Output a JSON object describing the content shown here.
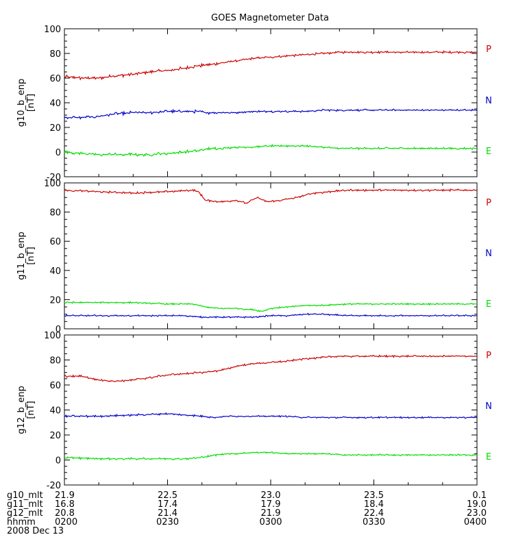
{
  "chart_data": {
    "type": "line",
    "title": "GOES Magnetometer Data",
    "x": [
      "0200",
      "0230",
      "0300",
      "0330",
      "0400"
    ],
    "panels": [
      {
        "ylabel": "g10_b_enp",
        "yunit": "[nT]",
        "ylim": [
          -20,
          100
        ],
        "yticks": [
          -20,
          0,
          20,
          40,
          60,
          80,
          100
        ],
        "series": [
          {
            "name": "P",
            "color": "#cc0000",
            "points": [
              [
                0,
                61
              ],
              [
                10,
                60
              ],
              [
                20,
                60
              ],
              [
                30,
                62
              ],
              [
                40,
                63
              ],
              [
                50,
                65
              ],
              [
                60,
                66
              ],
              [
                70,
                68
              ],
              [
                78,
                70
              ],
              [
                85,
                71
              ],
              [
                90,
                72
              ],
              [
                100,
                74
              ],
              [
                110,
                76
              ],
              [
                120,
                77
              ],
              [
                130,
                78
              ],
              [
                140,
                79
              ],
              [
                150,
                80
              ],
              [
                160,
                81
              ],
              [
                165,
                81
              ]
            ],
            "noise": 1.6,
            "quiet": 1.0
          },
          {
            "name": "N",
            "color": "#0000cc",
            "points": [
              [
                0,
                28
              ],
              [
                10,
                28
              ],
              [
                20,
                29
              ],
              [
                30,
                31
              ],
              [
                40,
                32
              ],
              [
                50,
                32
              ],
              [
                60,
                33
              ],
              [
                70,
                33
              ],
              [
                78,
                33
              ],
              [
                82,
                32
              ],
              [
                90,
                32
              ],
              [
                100,
                32
              ],
              [
                110,
                33
              ],
              [
                120,
                33
              ],
              [
                130,
                33
              ],
              [
                140,
                33
              ],
              [
                150,
                34
              ],
              [
                165,
                34
              ]
            ],
            "noise": 1.4,
            "quiet": 0.9
          },
          {
            "name": "E",
            "color": "#00dd00",
            "points": [
              [
                0,
                0
              ],
              [
                10,
                -1
              ],
              [
                20,
                -2
              ],
              [
                30,
                -2
              ],
              [
                40,
                -2
              ],
              [
                50,
                -2
              ],
              [
                60,
                -1
              ],
              [
                70,
                0
              ],
              [
                78,
                1
              ],
              [
                85,
                3
              ],
              [
                90,
                3
              ],
              [
                100,
                4
              ],
              [
                110,
                4
              ],
              [
                120,
                5
              ],
              [
                130,
                5
              ],
              [
                140,
                5
              ],
              [
                150,
                4
              ],
              [
                160,
                3
              ],
              [
                165,
                3
              ]
            ],
            "noise": 1.5,
            "quiet": 1.0
          }
        ]
      },
      {
        "ylabel": "g11_b_enp",
        "yunit": "[nT]",
        "ylim": [
          0,
          100
        ],
        "yticks": [
          0,
          20,
          40,
          60,
          80,
          100
        ],
        "series": [
          {
            "name": "P",
            "color": "#cc0000",
            "points": [
              [
                0,
                95
              ],
              [
                20,
                94
              ],
              [
                40,
                93
              ],
              [
                60,
                94
              ],
              [
                75,
                95
              ],
              [
                78,
                94
              ],
              [
                82,
                88
              ],
              [
                90,
                87
              ],
              [
                100,
                88
              ],
              [
                106,
                86
              ],
              [
                112,
                90
              ],
              [
                118,
                87
              ],
              [
                125,
                88
              ],
              [
                135,
                90
              ],
              [
                145,
                93
              ],
              [
                155,
                94
              ],
              [
                165,
                95
              ]
            ],
            "noise": 0.8,
            "quiet": 0.8
          },
          {
            "name": "N",
            "color": "#0000cc",
            "points": [
              [
                0,
                9
              ],
              [
                20,
                9
              ],
              [
                40,
                9
              ],
              [
                60,
                9
              ],
              [
                70,
                9
              ],
              [
                80,
                8
              ],
              [
                90,
                8
              ],
              [
                100,
                8
              ],
              [
                110,
                8
              ],
              [
                120,
                9
              ],
              [
                130,
                9
              ],
              [
                140,
                10
              ],
              [
                150,
                10
              ],
              [
                165,
                9
              ]
            ],
            "noise": 0.6,
            "quiet": 0.6
          },
          {
            "name": "E",
            "color": "#00dd00",
            "points": [
              [
                0,
                18
              ],
              [
                20,
                18
              ],
              [
                40,
                18
              ],
              [
                60,
                17
              ],
              [
                75,
                17
              ],
              [
                82,
                15
              ],
              [
                90,
                14
              ],
              [
                100,
                14
              ],
              [
                110,
                13
              ],
              [
                115,
                12
              ],
              [
                120,
                14
              ],
              [
                130,
                15
              ],
              [
                140,
                16
              ],
              [
                150,
                16
              ],
              [
                165,
                17
              ]
            ],
            "noise": 0.6,
            "quiet": 0.6
          }
        ]
      },
      {
        "ylabel": "g12_b_enp",
        "yunit": "[nT]",
        "ylim": [
          -20,
          100
        ],
        "yticks": [
          -20,
          0,
          20,
          40,
          60,
          80,
          100
        ],
        "series": [
          {
            "name": "P",
            "color": "#cc0000",
            "points": [
              [
                0,
                67
              ],
              [
                10,
                67
              ],
              [
                20,
                64
              ],
              [
                30,
                63
              ],
              [
                40,
                64
              ],
              [
                50,
                66
              ],
              [
                60,
                68
              ],
              [
                70,
                69
              ],
              [
                80,
                70
              ],
              [
                88,
                71
              ],
              [
                95,
                73
              ],
              [
                100,
                75
              ],
              [
                110,
                77
              ],
              [
                120,
                78
              ],
              [
                130,
                79
              ],
              [
                140,
                81
              ],
              [
                150,
                82
              ],
              [
                160,
                83
              ],
              [
                165,
                83
              ]
            ],
            "noise": 1.0,
            "quiet": 0.9
          },
          {
            "name": "N",
            "color": "#0000cc",
            "points": [
              [
                0,
                35
              ],
              [
                20,
                35
              ],
              [
                40,
                36
              ],
              [
                60,
                37
              ],
              [
                70,
                36
              ],
              [
                80,
                35
              ],
              [
                88,
                34
              ],
              [
                95,
                35
              ],
              [
                100,
                35
              ],
              [
                110,
                35
              ],
              [
                120,
                35
              ],
              [
                130,
                35
              ],
              [
                140,
                34
              ],
              [
                150,
                34
              ],
              [
                165,
                34
              ]
            ],
            "noise": 0.9,
            "quiet": 0.7
          },
          {
            "name": "E",
            "color": "#00dd00",
            "points": [
              [
                0,
                2
              ],
              [
                20,
                1
              ],
              [
                40,
                1
              ],
              [
                60,
                1
              ],
              [
                70,
                1
              ],
              [
                80,
                2
              ],
              [
                88,
                4
              ],
              [
                95,
                5
              ],
              [
                100,
                5
              ],
              [
                110,
                6
              ],
              [
                120,
                6
              ],
              [
                130,
                5
              ],
              [
                140,
                5
              ],
              [
                150,
                5
              ],
              [
                165,
                4
              ]
            ],
            "noise": 1.0,
            "quiet": 0.7
          }
        ]
      }
    ],
    "footer": {
      "rows": [
        {
          "label": "g10_mlt",
          "values": [
            "21.9",
            "22.5",
            "23.0",
            "23.5",
            "0.1"
          ]
        },
        {
          "label": "g11_mlt",
          "values": [
            "16.8",
            "17.4",
            "17.9",
            "18.4",
            "19.0"
          ]
        },
        {
          "label": "g12_mlt",
          "values": [
            "20.8",
            "21.4",
            "21.9",
            "22.4",
            "23.0"
          ]
        },
        {
          "label": "hhmm",
          "values": [
            "0200",
            "0230",
            "0300",
            "0330",
            "0400"
          ]
        }
      ],
      "date": "2008 Dec 13"
    }
  }
}
